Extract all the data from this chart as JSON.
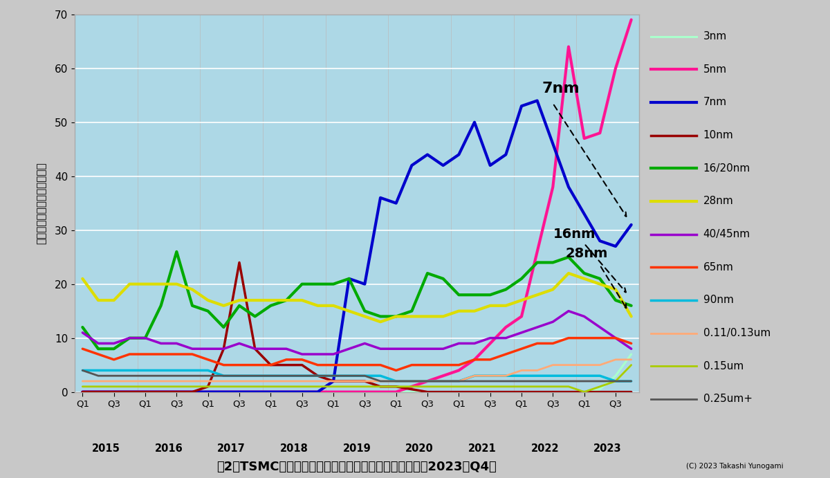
{
  "title": "図2　TSMCの各テクノロジーノードの売上高の推移（～2023年Q4）",
  "ylabel": "ノード別の売上高（億ドル）",
  "copyright": "(C) 2023 Takashi Yunogami",
  "ylim": [
    0,
    70
  ],
  "yticks": [
    0,
    10,
    20,
    30,
    40,
    50,
    60,
    70
  ],
  "fig_bg": "#c8c8c8",
  "plot_bg": "#add8e6",
  "years": [
    2015,
    2016,
    2017,
    2018,
    2019,
    2020,
    2021,
    2022,
    2023
  ],
  "series_order": [
    "3nm",
    "5nm",
    "7nm",
    "10nm",
    "16/20nm",
    "28nm",
    "40/45nm",
    "65nm",
    "90nm",
    "0.11/0.13um",
    "0.15um",
    "0.25um+"
  ],
  "series": {
    "3nm": {
      "color": "#aaffcc",
      "lw": 2.2,
      "data": [
        0,
        0,
        0,
        0,
        0,
        0,
        0,
        0,
        0,
        0,
        0,
        0,
        0,
        0,
        0,
        0,
        0,
        0,
        0,
        0,
        0,
        0,
        0,
        0,
        0,
        0,
        0,
        0,
        0,
        0,
        0,
        0,
        0,
        0.5,
        3,
        7
      ]
    },
    "5nm": {
      "color": "#ff1493",
      "lw": 3.0,
      "data": [
        0,
        0,
        0,
        0,
        0,
        0,
        0,
        0,
        0,
        0,
        0,
        0,
        0,
        0,
        0,
        0,
        0,
        0,
        0,
        0,
        0,
        1,
        2,
        3,
        4,
        6,
        9,
        12,
        14,
        26,
        38,
        64,
        47,
        48,
        60,
        69
      ]
    },
    "7nm": {
      "color": "#0000cc",
      "lw": 3.0,
      "data": [
        0,
        0,
        0,
        0,
        0,
        0,
        0,
        0,
        0,
        0,
        0,
        0,
        0,
        0,
        0,
        0,
        2,
        21,
        20,
        36,
        35,
        42,
        44,
        42,
        44,
        50,
        42,
        44,
        53,
        54,
        46,
        38,
        33,
        28,
        27,
        31
      ]
    },
    "10nm": {
      "color": "#990000",
      "lw": 2.5,
      "data": [
        0,
        0,
        0,
        0,
        0,
        0,
        0,
        0,
        1,
        8,
        24,
        8,
        5,
        5,
        5,
        3,
        2,
        2,
        2,
        1,
        1,
        0.5,
        0,
        0,
        0,
        0,
        0,
        0,
        0,
        0,
        0,
        0,
        0,
        0,
        0,
        0
      ]
    },
    "16/20nm": {
      "color": "#00aa00",
      "lw": 3.0,
      "data": [
        12,
        8,
        8,
        10,
        10,
        16,
        26,
        16,
        15,
        12,
        16,
        14,
        16,
        17,
        20,
        20,
        20,
        21,
        15,
        14,
        14,
        15,
        22,
        21,
        18,
        18,
        18,
        19,
        21,
        24,
        24,
        25,
        22,
        21,
        17,
        16
      ]
    },
    "28nm": {
      "color": "#dddd00",
      "lw": 3.0,
      "data": [
        21,
        17,
        17,
        20,
        20,
        20,
        20,
        19,
        17,
        16,
        17,
        17,
        17,
        17,
        17,
        16,
        16,
        15,
        14,
        13,
        14,
        14,
        14,
        14,
        15,
        15,
        16,
        16,
        17,
        18,
        19,
        22,
        21,
        20,
        19,
        14
      ]
    },
    "40/45nm": {
      "color": "#9900cc",
      "lw": 2.5,
      "data": [
        11,
        9,
        9,
        10,
        10,
        9,
        9,
        8,
        8,
        8,
        9,
        8,
        8,
        8,
        7,
        7,
        7,
        8,
        9,
        8,
        8,
        8,
        8,
        8,
        9,
        9,
        10,
        10,
        11,
        12,
        13,
        15,
        14,
        12,
        10,
        8
      ]
    },
    "65nm": {
      "color": "#ff3300",
      "lw": 2.5,
      "data": [
        8,
        7,
        6,
        7,
        7,
        7,
        7,
        7,
        6,
        5,
        5,
        5,
        5,
        6,
        6,
        5,
        5,
        5,
        5,
        5,
        4,
        5,
        5,
        5,
        5,
        6,
        6,
        7,
        8,
        9,
        9,
        10,
        10,
        10,
        10,
        9
      ]
    },
    "90nm": {
      "color": "#00bbdd",
      "lw": 2.5,
      "data": [
        4,
        4,
        4,
        4,
        4,
        4,
        4,
        4,
        4,
        3,
        3,
        3,
        3,
        3,
        3,
        3,
        3,
        3,
        3,
        3,
        2,
        2,
        2,
        2,
        2,
        3,
        3,
        3,
        3,
        3,
        3,
        3,
        3,
        3,
        2,
        2
      ]
    },
    "0.11/0.13um": {
      "color": "#ffaa77",
      "lw": 2.0,
      "data": [
        2,
        2,
        2,
        2,
        2,
        2,
        2,
        2,
        2,
        2,
        2,
        2,
        2,
        2,
        2,
        2,
        2,
        2,
        2,
        2,
        2,
        2,
        2,
        2,
        2,
        3,
        3,
        3,
        4,
        4,
        5,
        5,
        5,
        5,
        6,
        6
      ]
    },
    "0.15um": {
      "color": "#aacc00",
      "lw": 2.0,
      "data": [
        1,
        1,
        1,
        1,
        1,
        1,
        1,
        1,
        1,
        1,
        1,
        1,
        1,
        1,
        1,
        1,
        1,
        1,
        1,
        1,
        1,
        1,
        1,
        1,
        1,
        1,
        1,
        1,
        1,
        1,
        1,
        1,
        0,
        1,
        2,
        5
      ]
    },
    "0.25um+": {
      "color": "#555555",
      "lw": 2.0,
      "data": [
        4,
        3,
        3,
        3,
        3,
        3,
        3,
        3,
        3,
        3,
        3,
        3,
        3,
        3,
        3,
        3,
        3,
        3,
        3,
        2,
        2,
        2,
        2,
        2,
        2,
        2,
        2,
        2,
        2,
        2,
        2,
        2,
        2,
        2,
        2,
        2
      ]
    }
  }
}
